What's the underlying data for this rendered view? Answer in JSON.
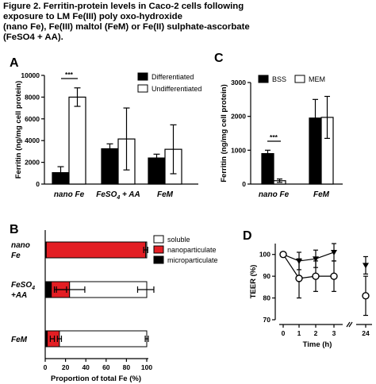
{
  "figure": {
    "title_lines": [
      "Figure 2. Ferritin-protein levels in Caco-2 cells following",
      "exposure to LM  Fe(III) poly oxo-hydroxide",
      "(nano Fe), Fe(III) maltol (FeM) or Fe(II) sulphate-ascorbate",
      "(FeSO4 + AA)."
    ]
  },
  "colors": {
    "black": "#000000",
    "white": "#ffffff",
    "red": "#e31e24"
  },
  "chart_data": [
    {
      "panel": "A",
      "type": "bar",
      "categories": [
        "nano Fe",
        "FeSO4 + AA",
        "FeM"
      ],
      "series": [
        {
          "name": "Differentiated",
          "color": "#000000",
          "values": [
            1050,
            3250,
            2400
          ],
          "errors": [
            550,
            450,
            350
          ]
        },
        {
          "name": "Undifferentiated",
          "color": "#ffffff",
          "values": [
            8000,
            4150,
            3200
          ],
          "errors": [
            850,
            2850,
            2250
          ]
        }
      ],
      "ylabel": "Ferritin (ng/mg cell protein)",
      "ylim": [
        0,
        10000
      ],
      "yticks": [
        "0",
        "2000",
        "4000",
        "6000",
        "8000",
        "10000"
      ],
      "annotations": [
        "***"
      ],
      "legend": "top-right"
    },
    {
      "panel": "C",
      "type": "bar",
      "categories": [
        "nano Fe",
        "FeM"
      ],
      "series": [
        {
          "name": "BSS",
          "color": "#000000",
          "values": [
            900,
            1950
          ],
          "errors": [
            100,
            550
          ]
        },
        {
          "name": "MEM",
          "color": "#ffffff",
          "values": [
            100,
            1970
          ],
          "errors": [
            50,
            620
          ]
        }
      ],
      "ylabel": "Ferritin (ng/mg cell protein)",
      "ylim": [
        0,
        3000
      ],
      "yticks": [
        "0",
        "1000",
        "2000",
        "3000"
      ],
      "annotations": [
        "***"
      ],
      "legend": "top"
    },
    {
      "panel": "B",
      "type": "bar",
      "orientation": "horizontal-stacked",
      "categories": [
        "nano Fe",
        "FeSO4 +AA",
        "FeM"
      ],
      "series": [
        {
          "name": "soluble",
          "color": "#ffffff",
          "values": [
            1,
            76,
            86
          ]
        },
        {
          "name": "nanoparticulate",
          "color": "#e31e24",
          "values": [
            98,
            18,
            12
          ]
        },
        {
          "name": "microparticulate",
          "color": "#000000",
          "values": [
            1,
            6,
            2
          ]
        }
      ],
      "xlabel": "Proportion of total Fe (%)",
      "xlim": [
        0,
        100
      ],
      "xticks": [
        "0",
        "20",
        "40",
        "60",
        "80",
        "100"
      ],
      "legend": "right"
    },
    {
      "panel": "D",
      "type": "line",
      "xticks": [
        "0",
        "1",
        "2",
        "3",
        "24"
      ],
      "x": [
        0,
        1,
        2,
        3,
        24
      ],
      "series": [
        {
          "marker": "filled-triangle",
          "values": [
            100,
            97,
            98,
            101,
            95
          ],
          "errors": [
            1,
            4,
            4,
            4,
            4
          ]
        },
        {
          "marker": "open-circle",
          "values": [
            100,
            89,
            90,
            90,
            81
          ],
          "errors": [
            1,
            9,
            7,
            7,
            9
          ]
        }
      ],
      "xlabel": "Time (h)",
      "ylabel": "TEER (%)",
      "ylim": [
        70,
        105
      ],
      "yticks": [
        "70",
        "80",
        "90",
        "100"
      ]
    }
  ]
}
